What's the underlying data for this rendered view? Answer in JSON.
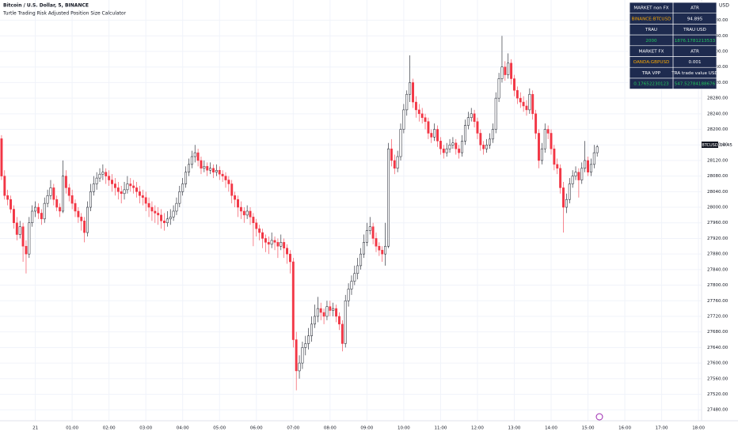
{
  "header": {
    "title": "Bitcoin / U.S. Dollar, 5, BINANCE",
    "indicator": "Turtle Trading Risk Adjusted Position Size Calculator",
    "currency": "USD"
  },
  "price_tag": {
    "symbol": "BTCUSD",
    "countdown": "04:45"
  },
  "table": {
    "rows": [
      [
        "MARKET non FX",
        "ATR"
      ],
      [
        "BINANCE:BTCUSD",
        "94.895"
      ],
      [
        "TRAU",
        "TRAU USD"
      ],
      [
        "2000",
        "1876.1781213533"
      ],
      [
        "MARKET FX",
        "ATR"
      ],
      [
        "OANDA:GBPUSD",
        "0.001"
      ],
      [
        "TRA VPP",
        "TRA trade value USD"
      ],
      [
        "0.17652230123",
        "547.52784188676"
      ]
    ]
  },
  "chart_data": {
    "type": "candlestick",
    "up_color": "#ffffff",
    "down_color": "#f23645",
    "outline_color": "#131722",
    "grid": true,
    "ylim": [
      27456,
      28532
    ],
    "yticks": [
      {
        "value": 27480,
        "label": "27480.00"
      },
      {
        "value": 27520,
        "label": "27520.00"
      },
      {
        "value": 27560,
        "label": "27560.00"
      },
      {
        "value": 27600,
        "label": "27600.00"
      },
      {
        "value": 27640,
        "label": "27640.00"
      },
      {
        "value": 27680,
        "label": "27680.00"
      },
      {
        "value": 27720,
        "label": "27720.00"
      },
      {
        "value": 27760,
        "label": "27760.00"
      },
      {
        "value": 27800,
        "label": "27800.00"
      },
      {
        "value": 27840,
        "label": "27840.00"
      },
      {
        "value": 27880,
        "label": "27880.00"
      },
      {
        "value": 27920,
        "label": "27920.00"
      },
      {
        "value": 27960,
        "label": "27960.00"
      },
      {
        "value": 28000,
        "label": "28000.00"
      },
      {
        "value": 28040,
        "label": "28040.00"
      },
      {
        "value": 28080,
        "label": "28080.00"
      },
      {
        "value": 28120,
        "label": "28120.00"
      },
      {
        "value": 28160,
        "label": "28160.00"
      },
      {
        "value": 28200,
        "label": "28200.00"
      },
      {
        "value": 28240,
        "label": "28240.00"
      },
      {
        "value": 28280,
        "label": "28280.00"
      },
      {
        "value": 28320,
        "label": "28320.00"
      },
      {
        "value": 28360,
        "label": "28360.00"
      },
      {
        "value": 28400,
        "label": "28400.00"
      },
      {
        "value": 28440,
        "label": "28440.00"
      },
      {
        "value": 28480,
        "label": "28480.00"
      }
    ],
    "xlim": [
      -0.5,
      228
    ],
    "xticks": [
      {
        "value": 11,
        "label": "21"
      },
      {
        "value": 23,
        "label": "01:00"
      },
      {
        "value": 35,
        "label": "02:00"
      },
      {
        "value": 47,
        "label": "03:00"
      },
      {
        "value": 59,
        "label": "04:00"
      },
      {
        "value": 71,
        "label": "05:00"
      },
      {
        "value": 83,
        "label": "06:00"
      },
      {
        "value": 95,
        "label": "07:00"
      },
      {
        "value": 107,
        "label": "08:00"
      },
      {
        "value": 119,
        "label": "09:00"
      },
      {
        "value": 131,
        "label": "10:00"
      },
      {
        "value": 143,
        "label": "11:00"
      },
      {
        "value": 155,
        "label": "12:00"
      },
      {
        "value": 167,
        "label": "13:00"
      },
      {
        "value": 179,
        "label": "14:00"
      },
      {
        "value": 191,
        "label": "15:00"
      },
      {
        "value": 203,
        "label": "16:00"
      },
      {
        "value": 215,
        "label": "17:00"
      },
      {
        "value": 227,
        "label": "18:00"
      }
    ],
    "ohlc": [
      [
        28176,
        28185,
        28070,
        28080
      ],
      [
        28080,
        28095,
        28020,
        28030
      ],
      [
        28030,
        28045,
        28005,
        28020
      ],
      [
        28020,
        28030,
        27985,
        27995
      ],
      [
        27995,
        28005,
        27945,
        27960
      ],
      [
        27960,
        27975,
        27915,
        27930
      ],
      [
        27930,
        27965,
        27920,
        27950
      ],
      [
        27950,
        27960,
        27860,
        27900
      ],
      [
        27900,
        27915,
        27830,
        27880
      ],
      [
        27880,
        27975,
        27870,
        27960
      ],
      [
        27960,
        28005,
        27950,
        27990
      ],
      [
        27990,
        28015,
        27975,
        28000
      ],
      [
        28000,
        28010,
        27970,
        27985
      ],
      [
        27985,
        27995,
        27955,
        27970
      ],
      [
        27970,
        28025,
        27960,
        28010
      ],
      [
        28010,
        28045,
        28000,
        28030
      ],
      [
        28030,
        28070,
        28020,
        28050
      ],
      [
        28050,
        28060,
        28005,
        28020
      ],
      [
        28020,
        28030,
        27990,
        28000
      ],
      [
        28000,
        28010,
        27975,
        27990
      ],
      [
        27990,
        28120,
        27985,
        28080
      ],
      [
        28080,
        28095,
        28035,
        28050
      ],
      [
        28050,
        28060,
        28015,
        28030
      ],
      [
        28030,
        28045,
        27995,
        28010
      ],
      [
        28010,
        28020,
        27975,
        27990
      ],
      [
        27990,
        28000,
        27960,
        27975
      ],
      [
        27975,
        27985,
        27940,
        27965
      ],
      [
        27965,
        27975,
        27910,
        27935
      ],
      [
        27935,
        28015,
        27925,
        28000
      ],
      [
        28000,
        28060,
        27990,
        28040
      ],
      [
        28040,
        28080,
        28030,
        28060
      ],
      [
        28060,
        28090,
        28045,
        28075
      ],
      [
        28075,
        28100,
        28065,
        28085
      ],
      [
        28085,
        28110,
        28070,
        28090
      ],
      [
        28090,
        28100,
        28060,
        28080
      ],
      [
        28080,
        28095,
        28055,
        28070
      ],
      [
        28070,
        28085,
        28040,
        28060
      ],
      [
        28060,
        28075,
        28030,
        28050
      ],
      [
        28050,
        28065,
        28020,
        28040
      ],
      [
        28040,
        28055,
        28010,
        28035
      ],
      [
        28035,
        28065,
        28020,
        28045
      ],
      [
        28045,
        28080,
        28035,
        28060
      ],
      [
        28060,
        28075,
        28040,
        28055
      ],
      [
        28055,
        28070,
        28035,
        28050
      ],
      [
        28050,
        28065,
        28025,
        28040
      ],
      [
        28040,
        28055,
        28010,
        28030
      ],
      [
        28030,
        28045,
        28005,
        28025
      ],
      [
        28025,
        28040,
        27990,
        28010
      ],
      [
        28010,
        28025,
        27975,
        28000
      ],
      [
        28000,
        28015,
        27965,
        27990
      ],
      [
        27990,
        28005,
        27960,
        27985
      ],
      [
        27985,
        28000,
        27955,
        27980
      ],
      [
        27980,
        27995,
        27945,
        27965
      ],
      [
        27965,
        27985,
        27940,
        27960
      ],
      [
        27960,
        27990,
        27950,
        27970
      ],
      [
        27970,
        27995,
        27955,
        27975
      ],
      [
        27975,
        28005,
        27965,
        27990
      ],
      [
        27990,
        28025,
        27980,
        28010
      ],
      [
        28010,
        28055,
        28000,
        28040
      ],
      [
        28040,
        28075,
        28030,
        28060
      ],
      [
        28060,
        28105,
        28050,
        28090
      ],
      [
        28090,
        28125,
        28080,
        28110
      ],
      [
        28110,
        28145,
        28100,
        28130
      ],
      [
        28130,
        28160,
        28115,
        28140
      ],
      [
        28140,
        28150,
        28105,
        28120
      ],
      [
        28120,
        28130,
        28085,
        28100
      ],
      [
        28100,
        28120,
        28090,
        28105
      ],
      [
        28105,
        28115,
        28080,
        28095
      ],
      [
        28095,
        28115,
        28085,
        28100
      ],
      [
        28100,
        28110,
        28075,
        28090
      ],
      [
        28090,
        28110,
        28080,
        28095
      ],
      [
        28095,
        28105,
        28070,
        28085
      ],
      [
        28085,
        28095,
        28065,
        28080
      ],
      [
        28080,
        28090,
        28050,
        28070
      ],
      [
        28070,
        28080,
        28040,
        28060
      ],
      [
        28060,
        28070,
        28010,
        28030
      ],
      [
        28030,
        28040,
        28000,
        28020
      ],
      [
        28020,
        28030,
        27975,
        28000
      ],
      [
        28000,
        28015,
        27970,
        27990
      ],
      [
        27990,
        28000,
        27960,
        27980
      ],
      [
        27980,
        28005,
        27970,
        27990
      ],
      [
        27990,
        28000,
        27955,
        27975
      ],
      [
        27975,
        27985,
        27900,
        27960
      ],
      [
        27960,
        27970,
        27925,
        27945
      ],
      [
        27945,
        27955,
        27915,
        27935
      ],
      [
        27935,
        27945,
        27895,
        27920
      ],
      [
        27920,
        27930,
        27885,
        27910
      ],
      [
        27910,
        27925,
        27880,
        27905
      ],
      [
        27905,
        27935,
        27895,
        27915
      ],
      [
        27915,
        27925,
        27890,
        27910
      ],
      [
        27910,
        27920,
        27870,
        27900
      ],
      [
        27900,
        27930,
        27890,
        27910
      ],
      [
        27910,
        27920,
        27870,
        27895
      ],
      [
        27895,
        27905,
        27855,
        27880
      ],
      [
        27880,
        27890,
        27830,
        27860
      ],
      [
        27860,
        27870,
        27640,
        27660
      ],
      [
        27660,
        27680,
        27530,
        27580
      ],
      [
        27580,
        27620,
        27560,
        27600
      ],
      [
        27600,
        27655,
        27585,
        27640
      ],
      [
        27640,
        27670,
        27620,
        27650
      ],
      [
        27650,
        27690,
        27635,
        27670
      ],
      [
        27670,
        27720,
        27655,
        27700
      ],
      [
        27700,
        27750,
        27690,
        27720
      ],
      [
        27720,
        27770,
        27705,
        27740
      ],
      [
        27740,
        27755,
        27710,
        27730
      ],
      [
        27730,
        27740,
        27700,
        27720
      ],
      [
        27720,
        27760,
        27710,
        27745
      ],
      [
        27745,
        27760,
        27720,
        27735
      ],
      [
        27735,
        27755,
        27720,
        27740
      ],
      [
        27740,
        27750,
        27705,
        27720
      ],
      [
        27720,
        27730,
        27685,
        27700
      ],
      [
        27700,
        27710,
        27630,
        27650
      ],
      [
        27650,
        27775,
        27640,
        27760
      ],
      [
        27760,
        27805,
        27745,
        27790
      ],
      [
        27790,
        27825,
        27775,
        27810
      ],
      [
        27810,
        27850,
        27800,
        27830
      ],
      [
        27830,
        27870,
        27815,
        27850
      ],
      [
        27850,
        27895,
        27840,
        27880
      ],
      [
        27880,
        27930,
        27870,
        27910
      ],
      [
        27910,
        27960,
        27900,
        27940
      ],
      [
        27940,
        27975,
        27930,
        27950
      ],
      [
        27950,
        27960,
        27905,
        27920
      ],
      [
        27920,
        27935,
        27885,
        27900
      ],
      [
        27900,
        27910,
        27875,
        27890
      ],
      [
        27890,
        27900,
        27860,
        27880
      ],
      [
        27880,
        27960,
        27850,
        27900
      ],
      [
        27900,
        28165,
        27895,
        28150
      ],
      [
        28150,
        28175,
        28105,
        28120
      ],
      [
        28120,
        28135,
        28085,
        28100
      ],
      [
        28100,
        28145,
        28090,
        28130
      ],
      [
        28130,
        28215,
        28120,
        28200
      ],
      [
        28200,
        28265,
        28190,
        28250
      ],
      [
        28250,
        28300,
        28235,
        28290
      ],
      [
        28290,
        28390,
        28270,
        28320
      ],
      [
        28320,
        28330,
        28255,
        28270
      ],
      [
        28270,
        28285,
        28230,
        28250
      ],
      [
        28250,
        28265,
        28220,
        28240
      ],
      [
        28240,
        28255,
        28215,
        28230
      ],
      [
        28230,
        28240,
        28200,
        28220
      ],
      [
        28220,
        28230,
        28175,
        28190
      ],
      [
        28190,
        28200,
        28165,
        28180
      ],
      [
        28180,
        28215,
        28170,
        28200
      ],
      [
        28200,
        28210,
        28155,
        28170
      ],
      [
        28170,
        28180,
        28135,
        28150
      ],
      [
        28150,
        28160,
        28125,
        28140
      ],
      [
        28140,
        28165,
        28130,
        28150
      ],
      [
        28150,
        28175,
        28140,
        28160
      ],
      [
        28160,
        28180,
        28150,
        28165
      ],
      [
        28165,
        28175,
        28135,
        28150
      ],
      [
        28150,
        28160,
        28125,
        28140
      ],
      [
        28140,
        28185,
        28130,
        28170
      ],
      [
        28170,
        28225,
        28160,
        28210
      ],
      [
        28210,
        28245,
        28200,
        28230
      ],
      [
        28230,
        28255,
        28220,
        28240
      ],
      [
        28240,
        28250,
        28205,
        28220
      ],
      [
        28220,
        28230,
        28175,
        28190
      ],
      [
        28190,
        28200,
        28145,
        28160
      ],
      [
        28160,
        28170,
        28135,
        28150
      ],
      [
        28150,
        28175,
        28140,
        28160
      ],
      [
        28160,
        28190,
        28150,
        28175
      ],
      [
        28175,
        28215,
        28165,
        28200
      ],
      [
        28200,
        28295,
        28190,
        28280
      ],
      [
        28280,
        28345,
        28270,
        28330
      ],
      [
        28330,
        28440,
        28320,
        28360
      ],
      [
        28360,
        28375,
        28325,
        28340
      ],
      [
        28340,
        28395,
        28330,
        28370
      ],
      [
        28370,
        28380,
        28315,
        28330
      ],
      [
        28330,
        28340,
        28285,
        28300
      ],
      [
        28300,
        28310,
        28265,
        28280
      ],
      [
        28280,
        28295,
        28255,
        28270
      ],
      [
        28270,
        28285,
        28245,
        28260
      ],
      [
        28260,
        28275,
        28235,
        28250
      ],
      [
        28250,
        28305,
        28240,
        28290
      ],
      [
        28290,
        28300,
        28225,
        28240
      ],
      [
        28240,
        28250,
        28175,
        28190
      ],
      [
        28190,
        28200,
        28100,
        28120
      ],
      [
        28120,
        28165,
        28110,
        28150
      ],
      [
        28150,
        28215,
        28140,
        28200
      ],
      [
        28200,
        28210,
        28175,
        28190
      ],
      [
        28190,
        28200,
        28135,
        28150
      ],
      [
        28150,
        28160,
        28095,
        28110
      ],
      [
        28110,
        28125,
        28085,
        28100
      ],
      [
        28100,
        28110,
        28035,
        28050
      ],
      [
        28050,
        28065,
        27935,
        28000
      ],
      [
        28000,
        28035,
        27985,
        28020
      ],
      [
        28020,
        28075,
        28010,
        28060
      ],
      [
        28060,
        28095,
        28050,
        28080
      ],
      [
        28080,
        28105,
        28070,
        28090
      ],
      [
        28090,
        28100,
        28025,
        28070
      ],
      [
        28070,
        28115,
        28060,
        28100
      ],
      [
        28100,
        28170,
        28090,
        28120
      ],
      [
        28120,
        28130,
        28080,
        28090
      ],
      [
        28090,
        28125,
        28080,
        28110
      ],
      [
        28110,
        28160,
        28100,
        28140
      ],
      [
        28140,
        28160,
        28130,
        28155
      ]
    ]
  }
}
